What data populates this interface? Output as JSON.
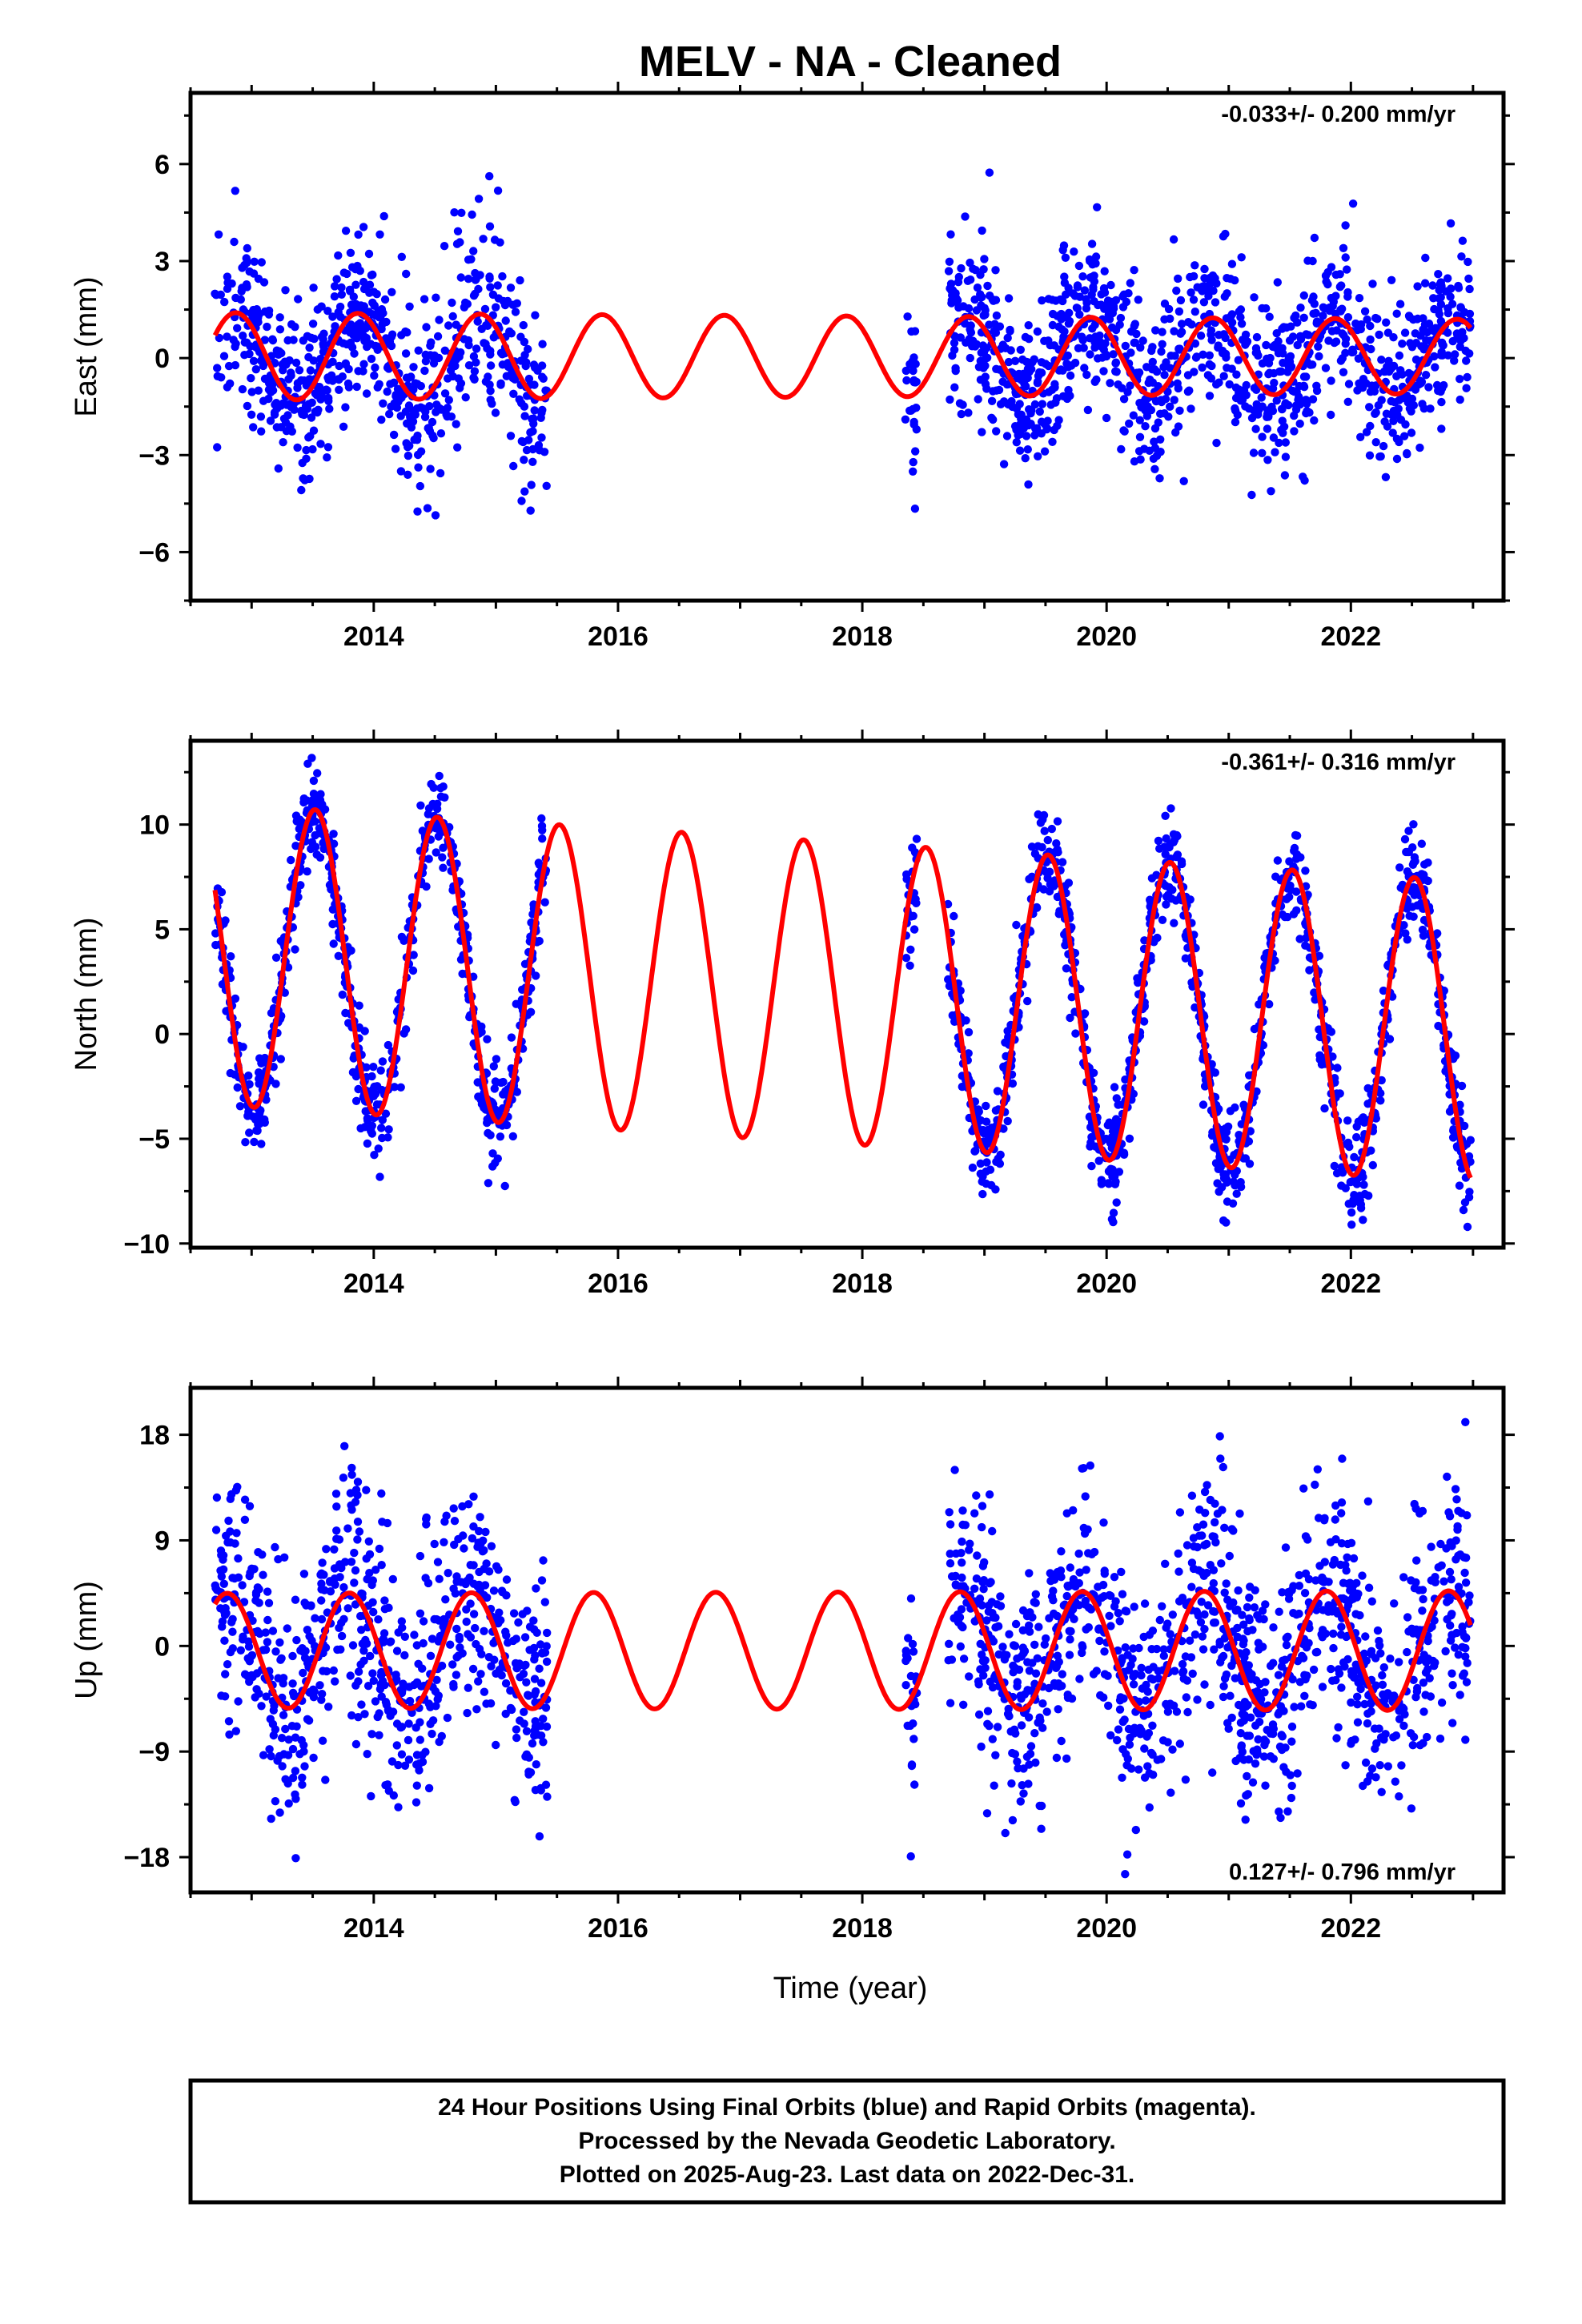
{
  "title": "MELV  - NA - Cleaned",
  "x_axis_label": "Time (year)",
  "footer": {
    "lines": [
      "24 Hour Positions Using Final Orbits (blue) and Rapid Orbits (magenta).",
      "Processed by the Nevada Geodetic Laboratory.",
      "Plotted on 2025-Aug-23. Last data on 2022-Dec-31."
    ]
  },
  "colors": {
    "points": "#0000ff",
    "model": "#ff0000",
    "frame": "#000000"
  },
  "chart_data": [
    {
      "type": "scatter",
      "id": "east",
      "ylabel": "East (mm)",
      "rate": "-0.033+/- 0.200 mm/yr",
      "rate_position": "top-right",
      "xlim": [
        2012.5,
        2023.25
      ],
      "ylim": [
        -7.5,
        8.2
      ],
      "x_ticks": [
        2014,
        2016,
        2018,
        2020,
        2022
      ],
      "y_ticks": [
        6,
        3,
        0,
        -3,
        -6
      ],
      "y_tick_labels": [
        "6",
        "3",
        "0",
        "−3",
        "−6"
      ],
      "data_spans": [
        [
          2012.7,
          2013.55
        ],
        [
          2013.55,
          2015.42
        ],
        [
          2018.35,
          2018.45
        ],
        [
          2018.7,
          2022.98
        ]
      ],
      "noise_sd": 1.3,
      "model": {
        "amplitude": 1.35,
        "amplitude_trend": -0.02,
        "phase_peak": 2012.87,
        "offset": 0.05,
        "x_start": 2012.7,
        "x_end": 2022.98
      },
      "series": [
        {
          "label": "daily positions (blue)",
          "style": "points"
        },
        {
          "label": "seasonal model",
          "style": "line"
        }
      ]
    },
    {
      "type": "scatter",
      "id": "north",
      "ylabel": "North (mm)",
      "rate": "-0.361+/- 0.316 mm/yr",
      "rate_position": "top-right",
      "xlim": [
        2012.5,
        2023.25
      ],
      "ylim": [
        -10.2,
        14.0
      ],
      "x_ticks": [
        2014,
        2016,
        2018,
        2020,
        2022
      ],
      "y_ticks": [
        10,
        5,
        0,
        -5,
        -10
      ],
      "y_tick_labels": [
        "10",
        "5",
        "0",
        "−5",
        "−10"
      ],
      "data_spans": [
        [
          2012.7,
          2013.55
        ],
        [
          2013.55,
          2015.42
        ],
        [
          2018.35,
          2018.45
        ],
        [
          2018.7,
          2022.98
        ]
      ],
      "noise_sd": 1.2,
      "model": {
        "amplitude": 7.2,
        "amplitude_trend": 0.0,
        "phase_peak": 2013.52,
        "offset": 3.7,
        "offset_trend": -0.36,
        "x_start": 2012.7,
        "x_end": 2022.98
      },
      "series": [
        {
          "label": "daily positions (blue)",
          "style": "points"
        },
        {
          "label": "seasonal model",
          "style": "line"
        }
      ]
    },
    {
      "type": "scatter",
      "id": "up",
      "ylabel": "Up (mm)",
      "rate": "0.127+/- 0.796 mm/yr",
      "rate_position": "bottom-right",
      "xlim": [
        2012.5,
        2023.25
      ],
      "ylim": [
        -21.0,
        22.0
      ],
      "x_ticks": [
        2014,
        2016,
        2018,
        2020,
        2022
      ],
      "y_ticks": [
        18,
        9,
        0,
        -9,
        -18
      ],
      "y_tick_labels": [
        "18",
        "9",
        "0",
        "−9",
        "−18"
      ],
      "data_spans": [
        [
          2012.7,
          2013.55
        ],
        [
          2013.55,
          2015.42
        ],
        [
          2018.35,
          2018.45
        ],
        [
          2018.7,
          2022.98
        ]
      ],
      "noise_sd": 5.0,
      "model": {
        "amplitude": 4.9,
        "amplitude_trend": 0.02,
        "phase_peak": 2012.8,
        "offset": -0.4,
        "x_start": 2012.7,
        "x_end": 2022.98
      },
      "series": [
        {
          "label": "daily positions (blue)",
          "style": "points"
        },
        {
          "label": "seasonal model",
          "style": "line"
        }
      ]
    }
  ]
}
